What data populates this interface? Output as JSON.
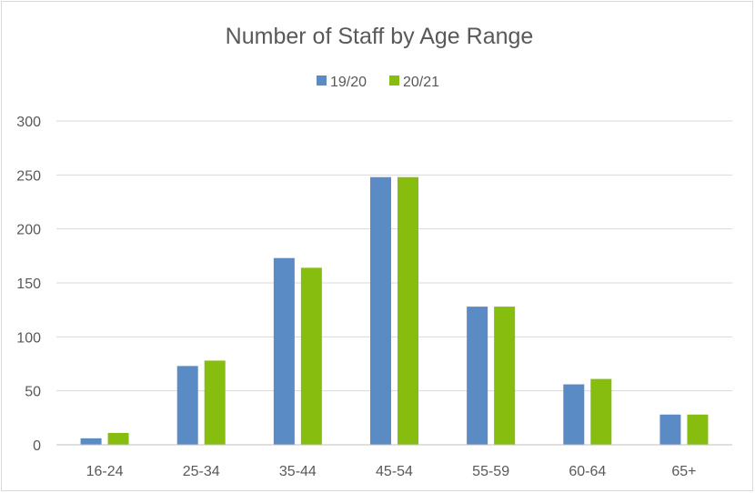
{
  "chart_data": {
    "type": "bar",
    "title": "Number of Staff by Age Range",
    "categories": [
      "16-24",
      "25-34",
      "35-44",
      "45-54",
      "55-59",
      "60-64",
      "65+"
    ],
    "series": [
      {
        "name": "19/20",
        "color": "#5b8bc5",
        "values": [
          6,
          73,
          173,
          248,
          128,
          56,
          28
        ]
      },
      {
        "name": "20/21",
        "color": "#86bd0f",
        "values": [
          11,
          78,
          164,
          248,
          128,
          61,
          28
        ]
      }
    ],
    "ylim": [
      0,
      300
    ],
    "yticks": [
      0,
      50,
      100,
      150,
      200,
      250,
      300
    ],
    "xlabel": "",
    "ylabel": "",
    "grid": true,
    "legend_position": "top"
  }
}
